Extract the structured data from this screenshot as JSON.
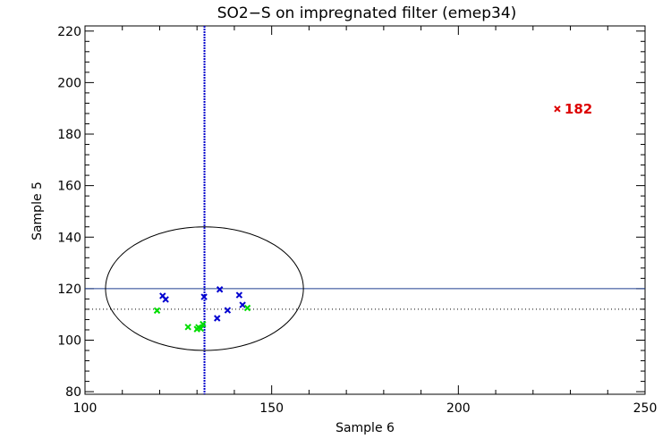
{
  "chart_data": {
    "type": "scatter",
    "title": "SO2−S on impregnated filter (emep34)",
    "xlabel": "Sample 6",
    "ylabel": "Sample 5",
    "xlim": [
      100,
      250
    ],
    "ylim": [
      79,
      222
    ],
    "xticks": [
      100,
      150,
      200,
      250
    ],
    "xtick_labels": [
      "100",
      "150",
      "200",
      "250"
    ],
    "yticks": [
      80,
      100,
      120,
      140,
      160,
      180,
      200,
      220
    ],
    "ytick_labels": [
      "80",
      "100",
      "120",
      "140",
      "160",
      "180",
      "200",
      "220"
    ],
    "grid": false,
    "series": [
      {
        "color": "#0000d0",
        "x": [
          120.8,
          121.6,
          131.9,
          136.1,
          141.3,
          142.2,
          138.2,
          135.4
        ],
        "y": [
          117.2,
          115.8,
          116.8,
          119.7,
          117.5,
          113.7,
          111.6,
          108.5
        ]
      },
      {
        "color": "#00dd00",
        "x": [
          119.3,
          127.6,
          130.0,
          130.4,
          131.0,
          131.6,
          143.5
        ],
        "y": [
          111.5,
          105.1,
          104.3,
          105.0,
          104.5,
          106.2,
          112.5
        ]
      },
      {
        "color": "#dd0000",
        "x": [
          226.5
        ],
        "y": [
          189.8
        ]
      }
    ],
    "outlier_annotation": {
      "x": 226.5,
      "y": 189.8,
      "text": "182",
      "color": "#dd0000"
    },
    "reference_lines": {
      "vertical_x": 132.0,
      "vertical_color": "#0000cc",
      "horizontal_solid_y": 120.0,
      "horizontal_solid_color": "#1f3f8f",
      "horizontal_dotted_y": 112.0,
      "horizontal_dotted_color": "#000000"
    },
    "ellipse": {
      "center_x": 132.0,
      "center_y": 120.0,
      "radius_x": 26.5,
      "radius_y": 24.0,
      "color": "#000000"
    }
  }
}
